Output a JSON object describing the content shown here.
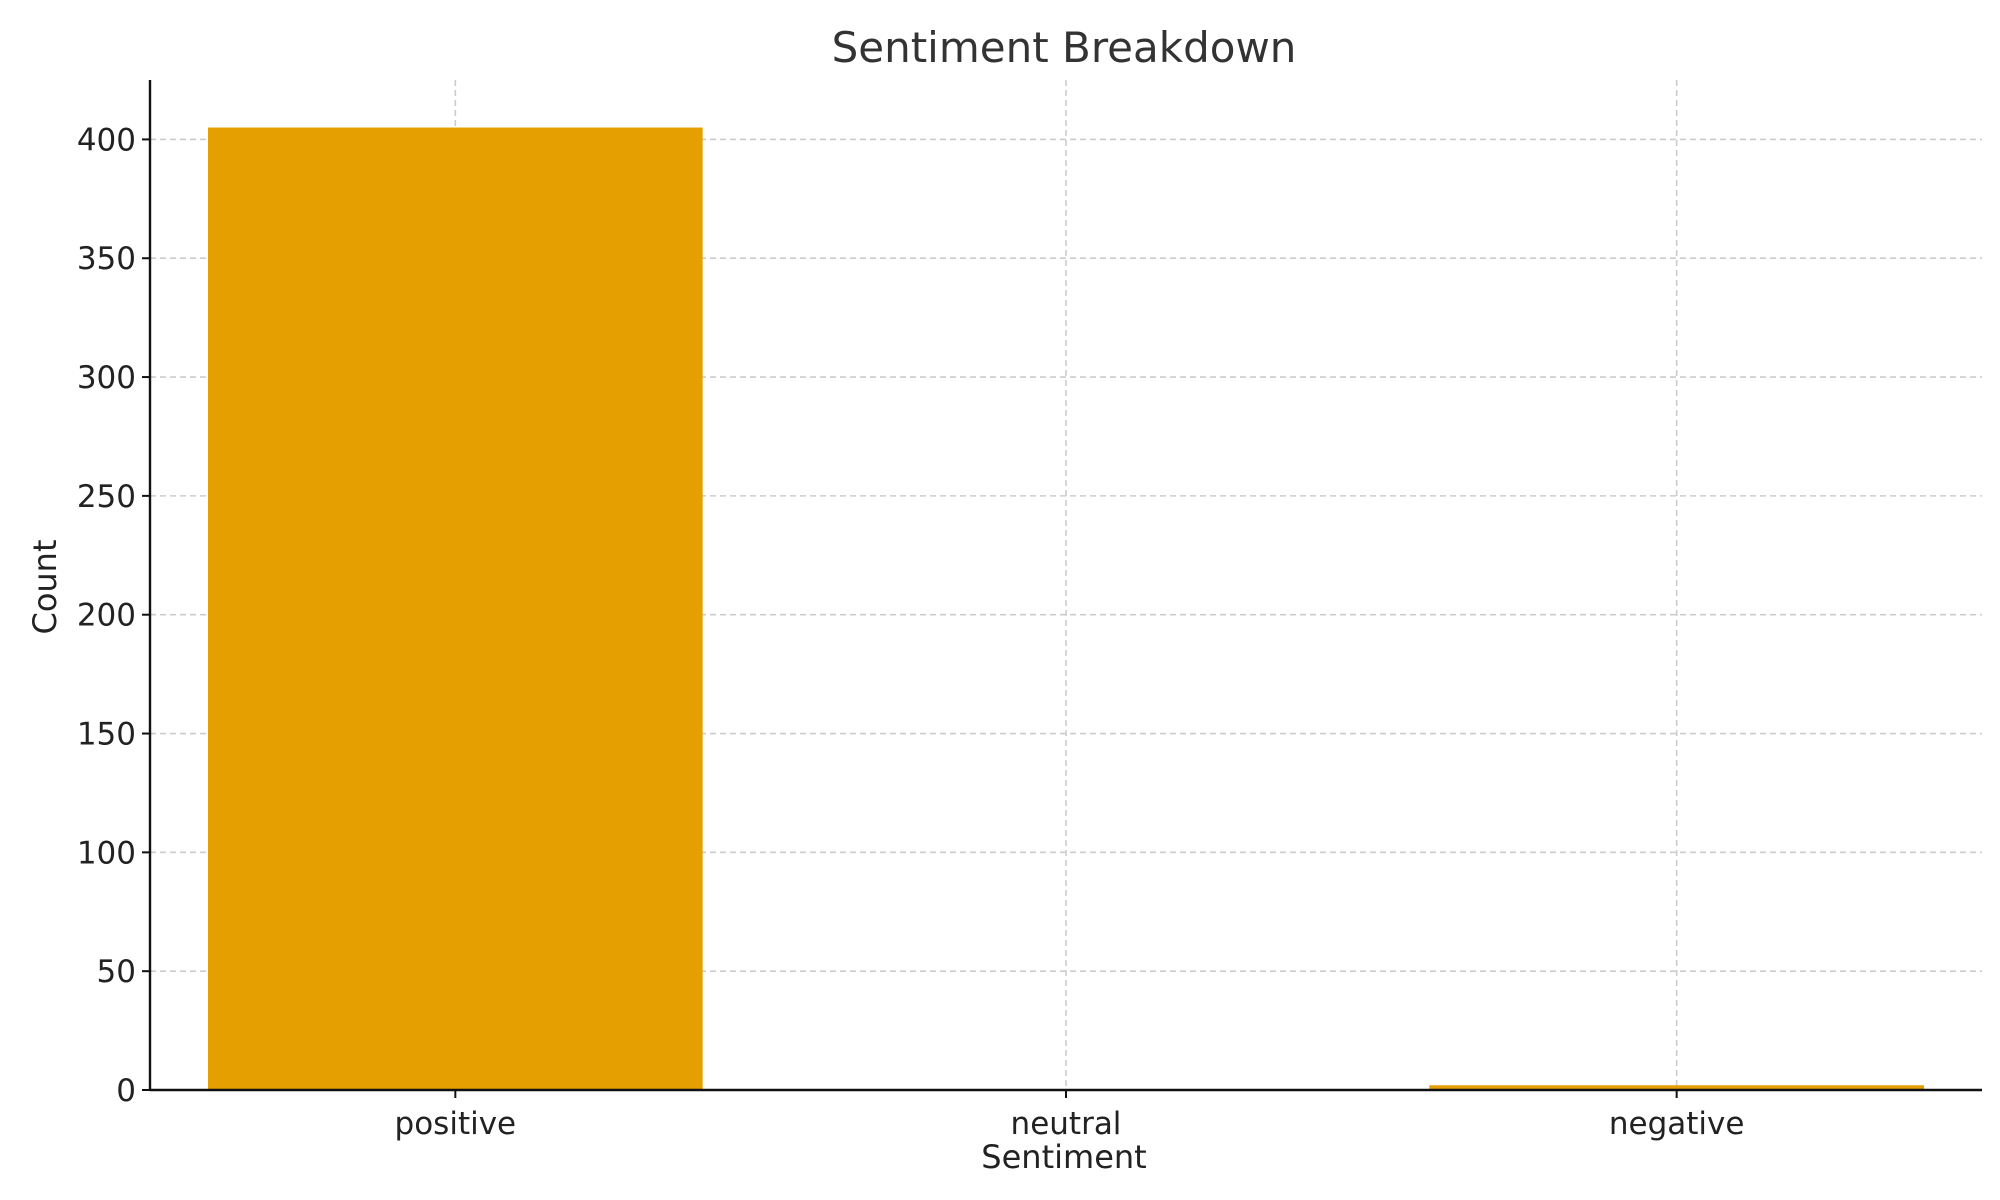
{
  "chart_data": {
    "type": "bar",
    "title": "Sentiment Breakdown",
    "xlabel": "Sentiment",
    "ylabel": "Count",
    "categories": [
      "positive",
      "neutral",
      "negative"
    ],
    "values": [
      405,
      0,
      2
    ],
    "ylim": [
      0,
      425
    ],
    "yticks": [
      0,
      50,
      100,
      150,
      200,
      250,
      300,
      350,
      400
    ],
    "grid": true,
    "bar_color": "#E69F00"
  }
}
